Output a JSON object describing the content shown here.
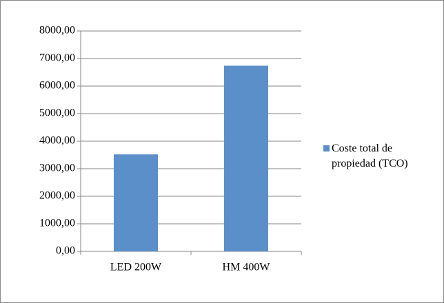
{
  "chart_data": {
    "type": "bar",
    "categories": [
      "LED 200W",
      "HM 400W"
    ],
    "series": [
      {
        "name": "Coste total de propiedad (TCO)",
        "color": "#5b8fc9",
        "values": [
          3520,
          6740
        ]
      }
    ],
    "ylim": [
      0,
      8000
    ],
    "yticks": [
      {
        "value": 0,
        "label": "0,00"
      },
      {
        "value": 1000,
        "label": "1000,00"
      },
      {
        "value": 2000,
        "label": "2000,00"
      },
      {
        "value": 3000,
        "label": "3000,00"
      },
      {
        "value": 4000,
        "label": "4000,00"
      },
      {
        "value": 5000,
        "label": "5000,00"
      },
      {
        "value": 6000,
        "label": "6000,00"
      },
      {
        "value": 7000,
        "label": "7000,00"
      },
      {
        "value": 8000,
        "label": "8000,00"
      }
    ],
    "grid": true,
    "legend": "right"
  }
}
